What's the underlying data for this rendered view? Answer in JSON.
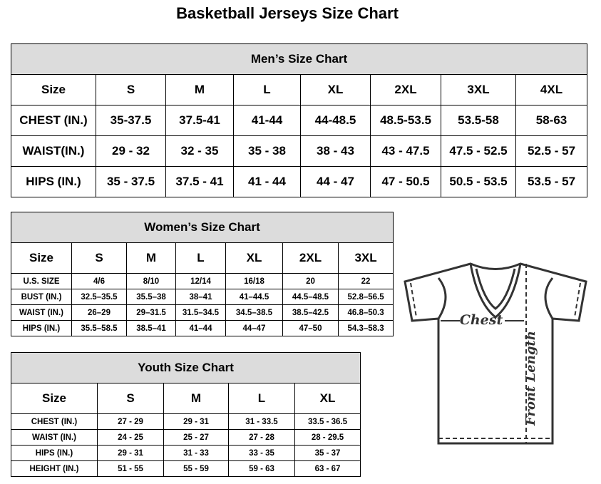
{
  "title": "Basketball Jerseys Size Chart",
  "men": {
    "title": "Men’s Size Chart",
    "header": [
      "Size",
      "S",
      "M",
      "L",
      "XL",
      "2XL",
      "3XL",
      "4XL"
    ],
    "rows": [
      [
        "CHEST (IN.)",
        "35-37.5",
        "37.5-41",
        "41-44",
        "44-48.5",
        "48.5-53.5",
        "53.5-58",
        "58-63"
      ],
      [
        "WAIST(IN.)",
        "29 - 32",
        "32 - 35",
        "35 - 38",
        "38 - 43",
        "43 - 47.5",
        "47.5 - 52.5",
        "52.5 - 57"
      ],
      [
        "HIPS (IN.)",
        "35 - 37.5",
        "37.5 - 41",
        "41 - 44",
        "44 - 47",
        "47 - 50.5",
        "50.5 - 53.5",
        "53.5 - 57"
      ]
    ]
  },
  "women": {
    "title": "Women’s Size Chart",
    "header": [
      "Size",
      "S",
      "M",
      "L",
      "XL",
      "2XL",
      "3XL"
    ],
    "rows": [
      [
        "U.S. SIZE",
        "4/6",
        "8/10",
        "12/14",
        "16/18",
        "20",
        "22"
      ],
      [
        "BUST (IN.)",
        "32.5–35.5",
        "35.5–38",
        "38–41",
        "41–44.5",
        "44.5–48.5",
        "52.8–56.5"
      ],
      [
        "WAIST (IN.)",
        "26–29",
        "29–31.5",
        "31.5–34.5",
        "34.5–38.5",
        "38.5–42.5",
        "46.8–50.3"
      ],
      [
        "HIPS (IN.)",
        "35.5–58.5",
        "38.5–41",
        "41–44",
        "44–47",
        "47–50",
        "54.3–58.3"
      ]
    ]
  },
  "youth": {
    "title": "Youth Size Chart",
    "header": [
      "Size",
      "S",
      "M",
      "L",
      "XL"
    ],
    "rows": [
      [
        "CHEST (IN.)",
        "27 - 29",
        "29 - 31",
        "31 - 33.5",
        "33.5 - 36.5"
      ],
      [
        "WAIST (IN.)",
        "24 - 25",
        "25 - 27",
        "27 - 28",
        "28 - 29.5"
      ],
      [
        "HIPS (IN.)",
        "29 - 31",
        "31 - 33",
        "33 - 35",
        "35 - 37"
      ],
      [
        "HEIGHT (IN.)",
        "51 - 55",
        "55 - 59",
        "59 - 63",
        "63 - 67"
      ]
    ]
  },
  "diagram": {
    "chest_label": "Chest",
    "length_label": "Front Length",
    "icon": "t-shirt-icon"
  }
}
